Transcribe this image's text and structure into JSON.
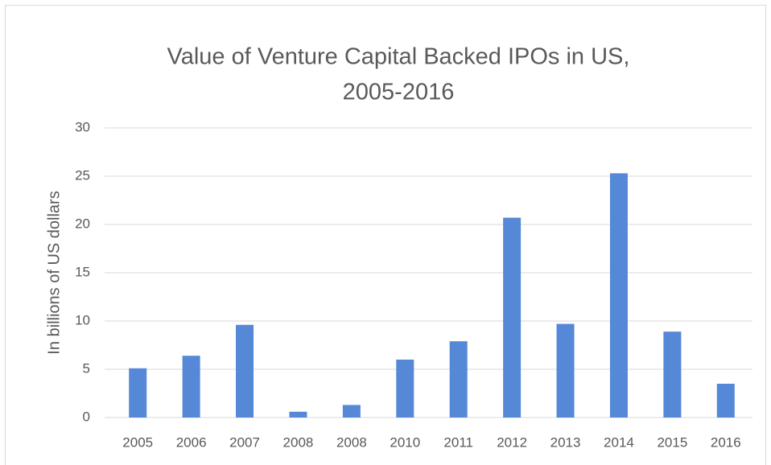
{
  "chart_data": {
    "type": "bar",
    "title": [
      "Value of Venture Capital Backed IPOs in US,",
      "2005-2016"
    ],
    "y_label": "In billions of US dollars",
    "categories": [
      "2005",
      "2006",
      "2007",
      "2008",
      "2008",
      "2010",
      "2011",
      "2012",
      "2013",
      "2014",
      "2015",
      "2016"
    ],
    "values": [
      5.1,
      6.4,
      9.6,
      0.6,
      1.3,
      6.0,
      7.9,
      20.7,
      9.7,
      25.3,
      8.9,
      3.5
    ],
    "color": "#5588d6",
    "ylim": [
      0,
      30
    ],
    "yticks": [
      0,
      5,
      10,
      15,
      20,
      25,
      30
    ],
    "grid": true
  }
}
